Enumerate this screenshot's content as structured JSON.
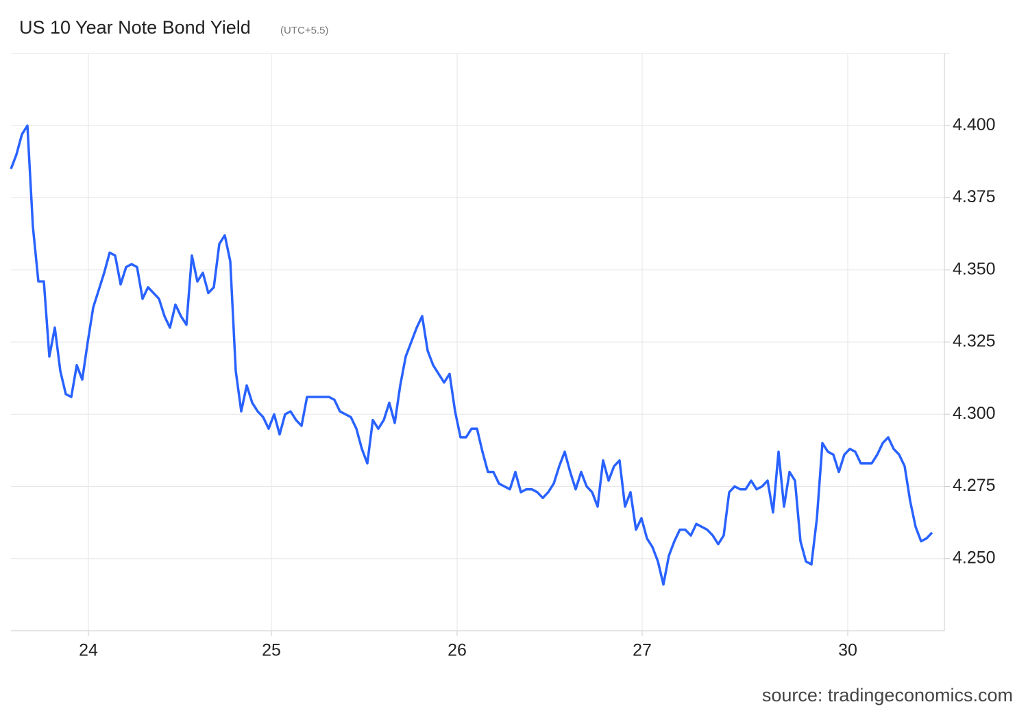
{
  "chart_data": {
    "type": "line",
    "title": "US 10 Year Note Bond Yield",
    "subtitle": "(UTC+5.5)",
    "source": "source: tradingeconomics.com",
    "color": "#2962ff",
    "grid": true,
    "y_axis_side": "right",
    "values": [
      4.385,
      4.39,
      4.397,
      4.4,
      4.365,
      4.346,
      4.346,
      4.32,
      4.33,
      4.315,
      4.307,
      4.306,
      4.317,
      4.312,
      4.325,
      4.337,
      4.343,
      4.349,
      4.356,
      4.355,
      4.345,
      4.351,
      4.352,
      4.351,
      4.34,
      4.344,
      4.342,
      4.34,
      4.334,
      4.33,
      4.338,
      4.334,
      4.331,
      4.355,
      4.346,
      4.349,
      4.342,
      4.344,
      4.359,
      4.362,
      4.353,
      4.315,
      4.301,
      4.31,
      4.304,
      4.301,
      4.299,
      4.295,
      4.3,
      4.293,
      4.3,
      4.301,
      4.298,
      4.296,
      4.306,
      4.306,
      4.306,
      4.306,
      4.306,
      4.305,
      4.301,
      4.3,
      4.299,
      4.295,
      4.288,
      4.283,
      4.298,
      4.295,
      4.298,
      4.304,
      4.297,
      4.31,
      4.32,
      4.325,
      4.33,
      4.334,
      4.322,
      4.317,
      4.314,
      4.311,
      4.314,
      4.301,
      4.292,
      4.292,
      4.295,
      4.295,
      4.287,
      4.28,
      4.28,
      4.276,
      4.275,
      4.274,
      4.28,
      4.273,
      4.274,
      4.274,
      4.273,
      4.271,
      4.273,
      4.276,
      4.282,
      4.287,
      4.28,
      4.274,
      4.28,
      4.275,
      4.273,
      4.268,
      4.284,
      4.277,
      4.282,
      4.284,
      4.268,
      4.273,
      4.26,
      4.264,
      4.257,
      4.254,
      4.249,
      4.241,
      4.251,
      4.256,
      4.26,
      4.26,
      4.258,
      4.262,
      4.261,
      4.26,
      4.258,
      4.255,
      4.258,
      4.273,
      4.275,
      4.274,
      4.274,
      4.277,
      4.274,
      4.275,
      4.277,
      4.266,
      4.287,
      4.268,
      4.28,
      4.277,
      4.256,
      4.249,
      4.248,
      4.264,
      4.29,
      4.287,
      4.286,
      4.28,
      4.286,
      4.288,
      4.287,
      4.283,
      4.283,
      4.283,
      4.286,
      4.29,
      4.292,
      4.288,
      4.286,
      4.282,
      4.27,
      4.261,
      4.256,
      4.257,
      4.259
    ],
    "xlim": [
      0,
      170.25
    ],
    "xticks": [
      {
        "value": 14.125,
        "label": "24"
      },
      {
        "value": 47.5,
        "label": "25"
      },
      {
        "value": 81.375,
        "label": "26"
      },
      {
        "value": 115.125,
        "label": "27"
      },
      {
        "value": 152.625,
        "label": "30"
      }
    ],
    "ylim": [
      4.225,
      4.425
    ],
    "yticks": [
      {
        "value": 4.25,
        "label": "4.250"
      },
      {
        "value": 4.275,
        "label": "4.275"
      },
      {
        "value": 4.3,
        "label": "4.300"
      },
      {
        "value": 4.325,
        "label": "4.325"
      },
      {
        "value": 4.35,
        "label": "4.350"
      },
      {
        "value": 4.375,
        "label": "4.375"
      },
      {
        "value": 4.4,
        "label": "4.400"
      }
    ]
  }
}
